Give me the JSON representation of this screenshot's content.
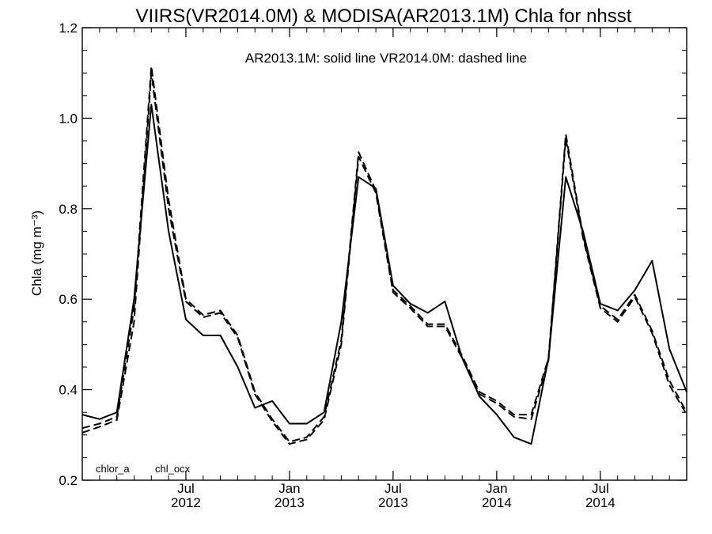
{
  "chart_data": {
    "type": "line",
    "title": "VIIRS(VR2014.0M) & MODISA(AR2013.1M)  Chla for nhsst",
    "ylabel": "Chla (mg m⁻³)",
    "ylim": [
      0.2,
      1.2
    ],
    "xlim": [
      "2012-01-01",
      "2014-12-01"
    ],
    "yticks": [
      "0.2",
      "0.4",
      "0.6",
      "0.8",
      "1.0",
      "1.2"
    ],
    "xticks": [
      {
        "month": "Jul",
        "year": "2012",
        "date": "2012-07-01"
      },
      {
        "month": "Jan",
        "year": "2013",
        "date": "2013-01-01"
      },
      {
        "month": "Jul",
        "year": "2013",
        "date": "2013-07-01"
      },
      {
        "month": "Jan",
        "year": "2014",
        "date": "2014-01-01"
      },
      {
        "month": "Jul",
        "year": "2014",
        "date": "2014-07-01"
      }
    ],
    "annotation": "AR2013.1M: solid line   VR2014.0M: dashed line",
    "corner_labels": [
      "chlor_a",
      "chl_ocx"
    ],
    "x": [
      "2012-01",
      "2012-02",
      "2012-03",
      "2012-04",
      "2012-05",
      "2012-06",
      "2012-07",
      "2012-08",
      "2012-09",
      "2012-10",
      "2012-11",
      "2012-12",
      "2013-01",
      "2013-02",
      "2013-03",
      "2013-04",
      "2013-05",
      "2013-06",
      "2013-07",
      "2013-08",
      "2013-09",
      "2013-10",
      "2013-11",
      "2013-12",
      "2014-01",
      "2014-02",
      "2014-03",
      "2014-04",
      "2014-05",
      "2014-06",
      "2014-07",
      "2014-08",
      "2014-09",
      "2014-10",
      "2014-11",
      "2014-12"
    ],
    "series": [
      {
        "style": "solid",
        "color": "#000000",
        "values": [
          0.345,
          0.335,
          0.35,
          0.6,
          1.03,
          0.75,
          0.555,
          0.52,
          0.52,
          0.45,
          0.36,
          0.375,
          0.325,
          0.325,
          0.35,
          0.55,
          0.87,
          0.845,
          0.63,
          0.59,
          0.57,
          0.595,
          0.47,
          0.385,
          0.345,
          0.295,
          0.28,
          0.47,
          0.87,
          0.75,
          0.59,
          0.575,
          0.62,
          0.685,
          0.49,
          0.395
        ]
      },
      {
        "style": "dashed",
        "color": "#000000",
        "values": [
          0.315,
          0.325,
          0.34,
          0.58,
          1.115,
          0.82,
          0.6,
          0.565,
          0.575,
          0.52,
          0.395,
          0.335,
          0.285,
          0.295,
          0.34,
          0.51,
          0.925,
          0.84,
          0.62,
          0.585,
          0.545,
          0.545,
          0.475,
          0.395,
          0.375,
          0.345,
          0.345,
          0.47,
          0.965,
          0.74,
          0.585,
          0.555,
          0.61,
          0.53,
          0.42,
          0.35
        ]
      },
      {
        "style": "dashed",
        "color": "#000000",
        "values": [
          0.305,
          0.318,
          0.333,
          0.55,
          1.1,
          0.8,
          0.595,
          0.56,
          0.57,
          0.515,
          0.39,
          0.33,
          0.28,
          0.29,
          0.333,
          0.5,
          0.915,
          0.835,
          0.615,
          0.58,
          0.54,
          0.54,
          0.47,
          0.39,
          0.37,
          0.34,
          0.335,
          0.465,
          0.955,
          0.735,
          0.58,
          0.55,
          0.605,
          0.525,
          0.41,
          0.345
        ]
      }
    ],
    "grid": false,
    "legend": "none"
  }
}
